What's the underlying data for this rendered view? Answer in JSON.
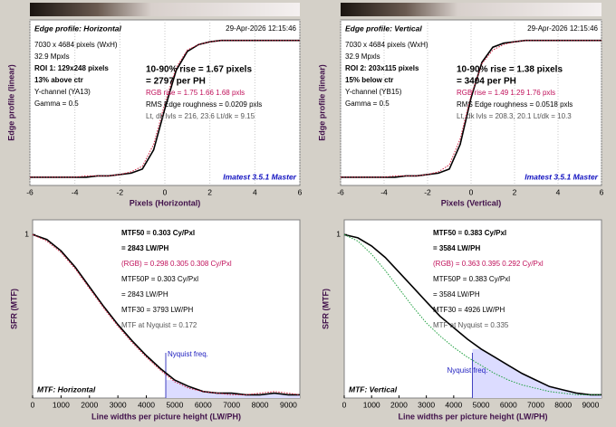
{
  "chart_data": [
    {
      "type": "line",
      "title": "Edge profile: Horizontal",
      "title_position": "top-left",
      "gradient": true,
      "date": "29-Apr-2026 12:15:46",
      "watermark": "Imatest 3.5.1 Master",
      "xlabel": "Pixels (Horizontal)",
      "ylabel": "Edge profile (linear)",
      "xlim": [
        -6,
        6
      ],
      "xticks": [
        -6,
        -4,
        -2,
        0,
        2,
        4,
        6
      ],
      "ylim": [
        -0.06,
        1.15
      ],
      "yticks": [],
      "grid": true,
      "info": [
        {
          "text": "7030 x 4684 pixels (WxH)",
          "style": "normal"
        },
        {
          "text": "32.9 Mpxls",
          "style": "normal"
        },
        {
          "text": "ROI 1:  129x248 pixels",
          "style": "bold"
        },
        {
          "text": "13% above ctr",
          "style": "bold"
        },
        {
          "text": "Y-channel  (YA13)",
          "style": "normal"
        },
        {
          "text": "Gamma = 0.5",
          "style": "normal"
        }
      ],
      "results": [
        {
          "text": "10-90% rise = 1.67 pixels",
          "style": "big"
        },
        {
          "text": "= 2797 per PH",
          "style": "big"
        },
        {
          "text": "RGB rise = 1.75  1.66  1.68 pxls",
          "style": "red"
        },
        {
          "text": "RMS Edge roughness = 0.0209 pxls",
          "style": "normal"
        },
        {
          "text": "Lt, dk lvls = 216, 23.6   Lt/dk = 9.15",
          "style": "gray"
        }
      ],
      "x": [
        -6,
        -5.5,
        -5,
        -4.5,
        -4,
        -3.5,
        -3,
        -2.5,
        -2,
        -1.5,
        -1,
        -0.5,
        0,
        0.5,
        1,
        1.5,
        2,
        2.5,
        3,
        3.5,
        4,
        4.5,
        5,
        5.5,
        6
      ],
      "series": [
        {
          "color": "#000000",
          "style": "solid",
          "values": [
            0,
            0,
            0,
            0,
            0,
            0,
            0.01,
            0.01,
            0.02,
            0.03,
            0.06,
            0.2,
            0.5,
            0.78,
            0.92,
            0.97,
            0.99,
            1,
            1,
            1,
            1,
            1,
            1,
            1,
            1
          ]
        },
        {
          "color": "#d02040",
          "style": "dotted",
          "values": [
            0,
            0,
            0,
            0,
            0,
            0.01,
            0.01,
            0.01,
            0.02,
            0.04,
            0.08,
            0.24,
            0.54,
            0.8,
            0.93,
            0.97,
            0.99,
            1,
            1,
            1,
            1,
            1,
            1,
            1,
            1
          ]
        }
      ]
    },
    {
      "type": "line",
      "title": "Edge profile: Vertical",
      "title_position": "top-left",
      "gradient": true,
      "date": "29-Apr-2026 12:15:46",
      "watermark": "Imatest 3.5.1 Master",
      "xlabel": "Pixels (Vertical)",
      "ylabel": "Edge profile (linear)",
      "xlim": [
        -6,
        6
      ],
      "xticks": [
        -6,
        -4,
        -2,
        0,
        2,
        4,
        6
      ],
      "ylim": [
        -0.06,
        1.15
      ],
      "yticks": [],
      "grid": true,
      "info": [
        {
          "text": "7030 x 4684 pixels (WxH)",
          "style": "normal"
        },
        {
          "text": "32.9 Mpxls",
          "style": "normal"
        },
        {
          "text": "ROI 2:  203x115 pixels",
          "style": "bold"
        },
        {
          "text": "15% below ctr",
          "style": "bold"
        },
        {
          "text": "Y-channel  (YB15)",
          "style": "normal"
        },
        {
          "text": "Gamma = 0.5",
          "style": "normal"
        }
      ],
      "results": [
        {
          "text": "10-90% rise = 1.38 pixels",
          "style": "big"
        },
        {
          "text": "= 3404 per PH",
          "style": "big"
        },
        {
          "text": "RGB rise = 1.49  1.29  1.76 pxls",
          "style": "red"
        },
        {
          "text": "RMS Edge roughness = 0.0518 pxls",
          "style": "normal"
        },
        {
          "text": "Lt, dk lvls = 208.3, 20.1   Lt/dk = 10.3",
          "style": "gray"
        }
      ],
      "x": [
        -6,
        -5.5,
        -5,
        -4.5,
        -4,
        -3.5,
        -3,
        -2.5,
        -2,
        -1.5,
        -1,
        -0.5,
        0,
        0.5,
        1,
        1.5,
        2,
        2.5,
        3,
        3.5,
        4,
        4.5,
        5,
        5.5,
        6
      ],
      "series": [
        {
          "color": "#000000",
          "style": "solid",
          "values": [
            0,
            0,
            0,
            0,
            0,
            0,
            0.01,
            0.01,
            0.02,
            0.03,
            0.06,
            0.24,
            0.58,
            0.84,
            0.95,
            0.98,
            0.99,
            1,
            1,
            1,
            1,
            1,
            1,
            1,
            1
          ]
        },
        {
          "color": "#d02040",
          "style": "dotted",
          "values": [
            0,
            0,
            0,
            0,
            0,
            0.01,
            0.01,
            0.01,
            0.02,
            0.04,
            0.09,
            0.28,
            0.6,
            0.83,
            0.93,
            0.97,
            0.99,
            1,
            1,
            1,
            1,
            1,
            1,
            1,
            1
          ]
        }
      ]
    },
    {
      "type": "line",
      "title": "MTF: Horizontal",
      "title_position": "bottom-left",
      "gradient": false,
      "xlabel": "Line widths per picture height (LW/PH)",
      "ylabel": "SFR (MTF)",
      "xlim": [
        0,
        9400
      ],
      "xticks": [
        0,
        1000,
        2000,
        3000,
        4000,
        5000,
        6000,
        7000,
        8000,
        9000
      ],
      "ylim": [
        0,
        1.09
      ],
      "yticks": [
        1
      ],
      "grid": false,
      "nyquist": 4684,
      "nyquist_label": "Nyquist freq.",
      "results": [
        {
          "text": "MTF50 = 0.303 Cy/Pxl",
          "style": "bold"
        },
        {
          "text": "= 2843 LW/PH",
          "style": "bold"
        },
        {
          "text": "(RGB) = 0.298  0.305  0.308 Cy/Pxl",
          "style": "red"
        },
        {
          "text": "MTF50P = 0.303 Cy/Pxl",
          "style": "normal"
        },
        {
          "text": "= 2843 LW/PH",
          "style": "normal"
        },
        {
          "text": "MTF30 = 3793 LW/PH",
          "style": "normal"
        },
        {
          "text": "MTF at Nyquist = 0.172",
          "style": "gray"
        }
      ],
      "x": [
        0,
        500,
        1000,
        1500,
        2000,
        2500,
        3000,
        3500,
        4000,
        4500,
        5000,
        5500,
        6000,
        6500,
        7000,
        7500,
        8000,
        8500,
        9000,
        9400
      ],
      "series": [
        {
          "color": "#000000",
          "style": "solid",
          "values": [
            1,
            0.97,
            0.9,
            0.8,
            0.68,
            0.56,
            0.45,
            0.35,
            0.26,
            0.18,
            0.11,
            0.07,
            0.04,
            0.03,
            0.03,
            0.02,
            0.02,
            0.03,
            0.02,
            0.02
          ]
        },
        {
          "color": "#d02040",
          "style": "dotted",
          "values": [
            1,
            0.96,
            0.89,
            0.79,
            0.67,
            0.55,
            0.44,
            0.34,
            0.25,
            0.17,
            0.1,
            0.06,
            0.04,
            0.03,
            0.02,
            0.02,
            0.03,
            0.04,
            0.03,
            0.02
          ]
        }
      ]
    },
    {
      "type": "line",
      "title": "MTF: Vertical",
      "title_position": "bottom-left",
      "gradient": false,
      "xlabel": "Line widths per picture height (LW/PH)",
      "ylabel": "SFR (MTF)",
      "xlim": [
        0,
        9400
      ],
      "xticks": [
        0,
        1000,
        2000,
        3000,
        4000,
        5000,
        6000,
        7000,
        8000,
        9000
      ],
      "ylim": [
        0,
        1.09
      ],
      "yticks": [
        1
      ],
      "grid": false,
      "nyquist": 4684,
      "nyquist_label": "Nyquist freq.",
      "results": [
        {
          "text": "MTF50 = 0.383 Cy/Pxl",
          "style": "bold"
        },
        {
          "text": "= 3584 LW/PH",
          "style": "bold"
        },
        {
          "text": "(RGB) = 0.363  0.395  0.292 Cy/Pxl",
          "style": "red"
        },
        {
          "text": "MTF50P = 0.383 Cy/Pxl",
          "style": "normal"
        },
        {
          "text": "= 3584 LW/PH",
          "style": "normal"
        },
        {
          "text": "MTF30 = 4926 LW/PH",
          "style": "normal"
        },
        {
          "text": "MTF at Nyquist = 0.335",
          "style": "gray"
        }
      ],
      "x": [
        0,
        500,
        1000,
        1500,
        2000,
        2500,
        3000,
        3500,
        4000,
        4500,
        5000,
        5500,
        6000,
        6500,
        7000,
        7500,
        8000,
        8500,
        9000,
        9400
      ],
      "series": [
        {
          "color": "#000000",
          "style": "solid",
          "values": [
            1,
            0.98,
            0.93,
            0.86,
            0.77,
            0.68,
            0.59,
            0.5,
            0.43,
            0.36,
            0.3,
            0.25,
            0.2,
            0.15,
            0.11,
            0.07,
            0.05,
            0.03,
            0.02,
            0.02
          ]
        },
        {
          "color": "#20a040",
          "style": "dotted",
          "values": [
            1,
            0.96,
            0.88,
            0.78,
            0.67,
            0.56,
            0.46,
            0.38,
            0.31,
            0.25,
            0.2,
            0.15,
            0.11,
            0.08,
            0.06,
            0.04,
            0.03,
            0.02,
            0.02,
            0.02
          ]
        }
      ]
    }
  ]
}
